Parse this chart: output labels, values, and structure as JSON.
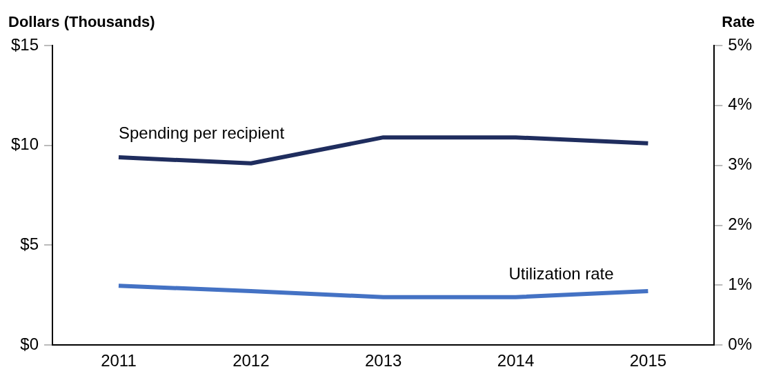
{
  "chart_data": {
    "type": "line",
    "ylabel": "Dollars (Thousands)",
    "y2label": "Rate",
    "categories": [
      "2011",
      "2012",
      "2013",
      "2014",
      "2015"
    ],
    "series": [
      {
        "name": "Spending per recipient",
        "color": "#1f2d5e",
        "values": [
          9.4,
          9.1,
          10.4,
          10.4,
          10.1
        ]
      },
      {
        "name": "Utilization rate",
        "color": "#4472c4",
        "axis": "y2",
        "values": [
          0.99,
          0.9,
          0.8,
          0.8,
          0.9
        ]
      }
    ],
    "ylim": [
      0,
      15
    ],
    "yticks": [
      {
        "value": 0,
        "label": "$0"
      },
      {
        "value": 5,
        "label": "$5"
      },
      {
        "value": 10,
        "label": "$10"
      },
      {
        "value": 15,
        "label": "$15"
      }
    ],
    "y2lim": [
      0,
      5
    ],
    "y2ticks": [
      {
        "value": 0,
        "label": "0%"
      },
      {
        "value": 1,
        "label": "1%"
      },
      {
        "value": 2,
        "label": "2%"
      },
      {
        "value": 3,
        "label": "3%"
      },
      {
        "value": 4,
        "label": "4%"
      },
      {
        "value": 5,
        "label": "5%"
      }
    ],
    "grid": false,
    "legend": false,
    "marker": "none",
    "line_style": "solid"
  }
}
